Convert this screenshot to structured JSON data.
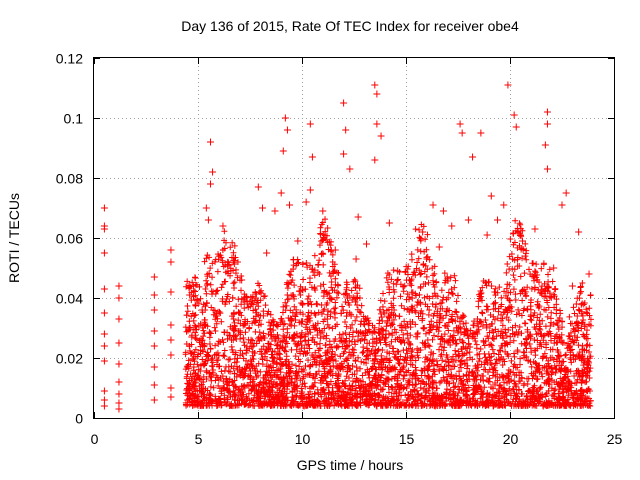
{
  "chart_data": {
    "type": "scatter",
    "title": "Day 136 of 2015, Rate Of TEC Index for receiver obe4",
    "xlabel": "GPS time / hours",
    "ylabel": "ROTI / TECUs",
    "xlim": [
      0,
      25
    ],
    "ylim": [
      0,
      0.12
    ],
    "x_ticks": [
      0,
      5,
      10,
      15,
      20,
      25
    ],
    "x_tick_labels": [
      "0",
      "5",
      "10",
      "15",
      "20",
      "25"
    ],
    "y_ticks": [
      0,
      0.02,
      0.04,
      0.06,
      0.08,
      0.1,
      0.12
    ],
    "y_tick_labels": [
      "0",
      "0.02",
      "0.04",
      "0.06",
      "0.08",
      "0.1",
      "0.12"
    ],
    "grid": true,
    "marker": "plus",
    "color": "#ff0000",
    "series": [
      {
        "points": [
          [
            0.5,
            0.07
          ],
          [
            0.5,
            0.064
          ],
          [
            0.5,
            0.063
          ],
          [
            0.5,
            0.055
          ],
          [
            0.5,
            0.043
          ],
          [
            0.5,
            0.035
          ],
          [
            0.5,
            0.028
          ],
          [
            0.5,
            0.024
          ],
          [
            0.5,
            0.019
          ],
          [
            0.5,
            0.009
          ],
          [
            0.5,
            0.006
          ],
          [
            0.5,
            0.004
          ],
          [
            1.2,
            0.044
          ],
          [
            1.2,
            0.04
          ],
          [
            1.2,
            0.033
          ],
          [
            1.2,
            0.025
          ],
          [
            1.2,
            0.018
          ],
          [
            1.2,
            0.012
          ],
          [
            1.2,
            0.008
          ],
          [
            1.2,
            0.005
          ],
          [
            1.2,
            0.003
          ],
          [
            2.9,
            0.047
          ],
          [
            2.9,
            0.041
          ],
          [
            2.9,
            0.036
          ],
          [
            2.9,
            0.029
          ],
          [
            2.9,
            0.024
          ],
          [
            2.9,
            0.017
          ],
          [
            2.9,
            0.011
          ],
          [
            2.9,
            0.006
          ],
          [
            3.7,
            0.056
          ],
          [
            3.7,
            0.052
          ],
          [
            3.7,
            0.042
          ],
          [
            3.7,
            0.031
          ],
          [
            3.7,
            0.026
          ],
          [
            3.7,
            0.021
          ],
          [
            3.7,
            0.01
          ],
          [
            3.7,
            0.007
          ],
          [
            5.6,
            0.092
          ],
          [
            5.7,
            0.082
          ],
          [
            5.6,
            0.078
          ],
          [
            5.4,
            0.07
          ],
          [
            5.5,
            0.066
          ],
          [
            6.2,
            0.064
          ],
          [
            7.9,
            0.077
          ],
          [
            8.1,
            0.07
          ],
          [
            8.7,
            0.069
          ],
          [
            9.2,
            0.1
          ],
          [
            9.3,
            0.096
          ],
          [
            9.1,
            0.089
          ],
          [
            9.0,
            0.075
          ],
          [
            9.4,
            0.071
          ],
          [
            10.4,
            0.098
          ],
          [
            10.5,
            0.087
          ],
          [
            10.4,
            0.076
          ],
          [
            10.2,
            0.072
          ],
          [
            11.0,
            0.069
          ],
          [
            12.0,
            0.105
          ],
          [
            12.1,
            0.096
          ],
          [
            12.0,
            0.088
          ],
          [
            12.3,
            0.083
          ],
          [
            12.7,
            0.067
          ],
          [
            13.5,
            0.111
          ],
          [
            13.6,
            0.108
          ],
          [
            13.6,
            0.098
          ],
          [
            13.5,
            0.086
          ],
          [
            13.8,
            0.094
          ],
          [
            14.2,
            0.065
          ],
          [
            16.3,
            0.071
          ],
          [
            16.8,
            0.069
          ],
          [
            17.6,
            0.098
          ],
          [
            17.7,
            0.095
          ],
          [
            18.2,
            0.087
          ],
          [
            18.6,
            0.095
          ],
          [
            19.1,
            0.074
          ],
          [
            19.7,
            0.071
          ],
          [
            20.2,
            0.101
          ],
          [
            20.3,
            0.097
          ],
          [
            19.9,
            0.111
          ],
          [
            21.8,
            0.102
          ],
          [
            21.8,
            0.098
          ],
          [
            21.7,
            0.091
          ],
          [
            21.8,
            0.083
          ],
          [
            22.5,
            0.071
          ],
          [
            22.7,
            0.075
          ],
          [
            23.3,
            0.062
          ],
          [
            23.8,
            0.048
          ],
          [
            4.6,
            0.041
          ],
          [
            4.7,
            0.027
          ],
          [
            4.8,
            0.017
          ],
          [
            4.5,
            0.006
          ],
          [
            5.2,
            0.036
          ],
          [
            5.9,
            0.034
          ],
          [
            6.5,
            0.051
          ],
          [
            7.1,
            0.046
          ],
          [
            7.6,
            0.039
          ],
          [
            8.3,
            0.055
          ],
          [
            9.8,
            0.059
          ],
          [
            10.9,
            0.044
          ],
          [
            11.6,
            0.056
          ],
          [
            12.6,
            0.053
          ],
          [
            13.1,
            0.058
          ],
          [
            14.6,
            0.049
          ],
          [
            15.3,
            0.04
          ],
          [
            15.8,
            0.062
          ],
          [
            16.6,
            0.057
          ],
          [
            17.2,
            0.064
          ],
          [
            18.0,
            0.066
          ],
          [
            18.9,
            0.061
          ],
          [
            19.4,
            0.066
          ],
          [
            20.6,
            0.059
          ],
          [
            21.2,
            0.063
          ],
          [
            22.1,
            0.05
          ],
          [
            23.0,
            0.044
          ],
          [
            23.6,
            0.031
          ],
          [
            13.6,
            0.004
          ],
          [
            16.4,
            0.004
          ],
          [
            19.2,
            0.004
          ],
          [
            6.3,
            0.005
          ],
          [
            10.1,
            0.004
          ],
          [
            21.6,
            0.004
          ],
          [
            11.3,
            0.005
          ],
          [
            8.7,
            0.005
          ]
        ]
      }
    ]
  }
}
